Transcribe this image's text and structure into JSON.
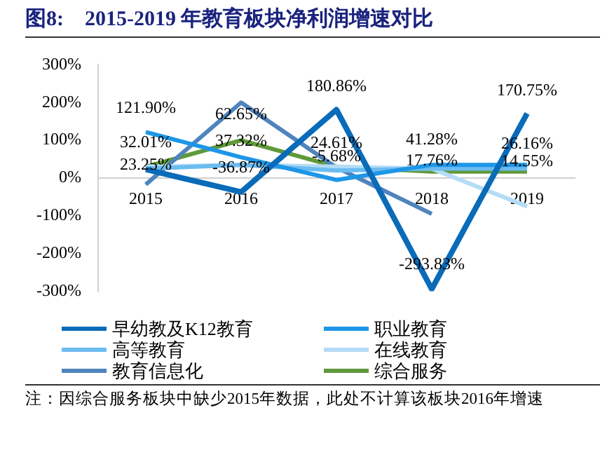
{
  "chart_data": {
    "type": "line",
    "title": "图8:　2015-2019 年教育板块净利润增速对比",
    "categories": [
      "2015",
      "2016",
      "2017",
      "2018",
      "2019"
    ],
    "series": [
      {
        "name": "早幼教及K12教育",
        "color": "#0a6bb8",
        "values": [
          23,
          -37,
          181,
          -294,
          171
        ]
      },
      {
        "name": "职业教育",
        "color": "#1e96e8",
        "values": [
          122,
          55,
          -5,
          35,
          35
        ]
      },
      {
        "name": "高等教育",
        "color": "#6cbcf0",
        "values": [
          25,
          35,
          20,
          25,
          25
        ]
      },
      {
        "name": "在线教育",
        "color": "#b4dcf6",
        "values": [
          30,
          35,
          30,
          25,
          -75
        ]
      },
      {
        "name": "教育信息化",
        "color": "#4f84bd",
        "values": [
          -17,
          200,
          28,
          -95,
          null
        ]
      },
      {
        "name": "综合服务",
        "color": "#5f9a3a",
        "values": [
          30,
          100,
          30,
          17,
          17
        ]
      }
    ],
    "ylim": [
      -300,
      300
    ],
    "yticks": [
      {
        "value": -300,
        "label": "-300%"
      },
      {
        "value": -200,
        "label": "-200%"
      },
      {
        "value": -100,
        "label": "-100%"
      },
      {
        "value": 0,
        "label": "0%"
      },
      {
        "value": 100,
        "label": "100%"
      },
      {
        "value": 200,
        "label": "200%"
      },
      {
        "value": 300,
        "label": "300%"
      }
    ],
    "grid": false,
    "legend": "bottom",
    "marker": "none",
    "line_style": "solid",
    "annotations": [
      "121.90%",
      "32.01%",
      "23.25%",
      "62.65%",
      "37.32%",
      "-36.87%",
      "180.86%",
      "24.61%",
      "-5.68%",
      "41.28%",
      "17.76%",
      "-293.83%",
      "170.75%",
      "26.16%",
      "14.55%",
      "注：因综合服务板块中缺少2015年数据，此处不计算该板块2016年增速"
    ]
  }
}
